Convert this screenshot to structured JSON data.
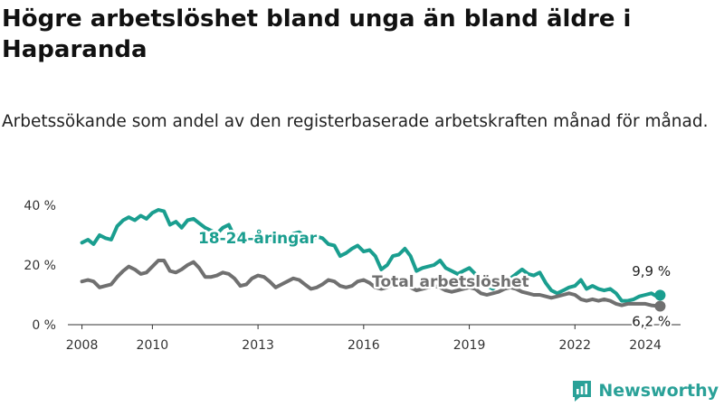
{
  "title": "Högre arbetslöshet bland unga än bland äldre i Haparanda",
  "subtitle": "Arbetssökande som andel av den registerbaserade arbetskraften månad för månad.",
  "brand": "Newsworthy",
  "colors": {
    "youth": "#1a9e8f",
    "total": "#707070",
    "axis": "#333333"
  },
  "chart_data": {
    "type": "line",
    "title": "Högre arbetslöshet bland unga än bland äldre i Haparanda",
    "subtitle": "Arbetssökande som andel av den registerbaserade arbetskraften månad för månad.",
    "xlabel": "",
    "ylabel": "",
    "x_unit": "decimal year",
    "xlim": [
      2007.6,
      2025.0
    ],
    "ylim": [
      0,
      40
    ],
    "x_ticks": [
      2008,
      2010,
      2013,
      2016,
      2019,
      2022,
      2024
    ],
    "y_ticks": [
      {
        "value": 0,
        "label": "0 %"
      },
      {
        "value": 20,
        "label": "20 %"
      },
      {
        "value": 40,
        "label": "40 %"
      }
    ],
    "grid": false,
    "legend": "inline labels",
    "series": [
      {
        "name": "18-24-åringar",
        "end_label": "9,9 %",
        "points": [
          [
            2008.0,
            27.5
          ],
          [
            2008.17,
            28.5
          ],
          [
            2008.33,
            27.0
          ],
          [
            2008.5,
            30.0
          ],
          [
            2008.67,
            29.0
          ],
          [
            2008.83,
            28.5
          ],
          [
            2009.0,
            33.0
          ],
          [
            2009.17,
            35.0
          ],
          [
            2009.33,
            36.0
          ],
          [
            2009.5,
            35.0
          ],
          [
            2009.67,
            36.5
          ],
          [
            2009.83,
            35.5
          ],
          [
            2010.0,
            37.5
          ],
          [
            2010.17,
            38.5
          ],
          [
            2010.33,
            38.0
          ],
          [
            2010.5,
            33.5
          ],
          [
            2010.67,
            34.5
          ],
          [
            2010.83,
            32.5
          ],
          [
            2011.0,
            35.0
          ],
          [
            2011.17,
            35.5
          ],
          [
            2011.33,
            34.0
          ],
          [
            2011.5,
            32.5
          ],
          [
            2011.67,
            31.5
          ],
          [
            2011.83,
            30.5
          ],
          [
            2012.0,
            32.5
          ],
          [
            2012.17,
            33.5
          ],
          [
            2012.33,
            29.5
          ],
          [
            2012.5,
            30.0
          ],
          [
            2012.67,
            28.5
          ],
          [
            2012.83,
            29.0
          ],
          [
            2013.0,
            30.5
          ],
          [
            2013.17,
            29.5
          ],
          [
            2013.33,
            28.5
          ],
          [
            2013.5,
            29.0
          ],
          [
            2013.67,
            28.0
          ],
          [
            2013.83,
            29.5
          ],
          [
            2014.0,
            30.5
          ],
          [
            2014.17,
            31.0
          ],
          [
            2014.33,
            29.5
          ],
          [
            2014.5,
            28.0
          ],
          [
            2014.67,
            29.5
          ],
          [
            2014.83,
            29.0
          ],
          [
            2015.0,
            27.0
          ],
          [
            2015.17,
            26.5
          ],
          [
            2015.33,
            23.0
          ],
          [
            2015.5,
            24.0
          ],
          [
            2015.67,
            25.5
          ],
          [
            2015.83,
            26.5
          ],
          [
            2016.0,
            24.5
          ],
          [
            2016.17,
            25.0
          ],
          [
            2016.33,
            23.0
          ],
          [
            2016.5,
            18.5
          ],
          [
            2016.67,
            20.0
          ],
          [
            2016.83,
            23.0
          ],
          [
            2017.0,
            23.5
          ],
          [
            2017.17,
            25.5
          ],
          [
            2017.33,
            23.0
          ],
          [
            2017.5,
            18.0
          ],
          [
            2017.67,
            19.0
          ],
          [
            2017.83,
            19.5
          ],
          [
            2018.0,
            20.0
          ],
          [
            2018.17,
            21.5
          ],
          [
            2018.33,
            19.0
          ],
          [
            2018.5,
            18.0
          ],
          [
            2018.67,
            17.0
          ],
          [
            2018.83,
            18.0
          ],
          [
            2019.0,
            19.0
          ],
          [
            2019.17,
            17.0
          ],
          [
            2019.33,
            14.5
          ],
          [
            2019.5,
            13.0
          ],
          [
            2019.67,
            12.0
          ],
          [
            2019.83,
            13.5
          ],
          [
            2020.0,
            14.5
          ],
          [
            2020.17,
            15.5
          ],
          [
            2020.33,
            17.0
          ],
          [
            2020.5,
            18.5
          ],
          [
            2020.67,
            17.0
          ],
          [
            2020.83,
            16.5
          ],
          [
            2021.0,
            17.5
          ],
          [
            2021.17,
            14.0
          ],
          [
            2021.33,
            11.5
          ],
          [
            2021.5,
            10.5
          ],
          [
            2021.67,
            11.5
          ],
          [
            2021.83,
            12.5
          ],
          [
            2022.0,
            13.0
          ],
          [
            2022.17,
            15.0
          ],
          [
            2022.33,
            12.0
          ],
          [
            2022.5,
            13.0
          ],
          [
            2022.67,
            12.0
          ],
          [
            2022.83,
            11.5
          ],
          [
            2023.0,
            12.0
          ],
          [
            2023.17,
            10.5
          ],
          [
            2023.33,
            8.0
          ],
          [
            2023.5,
            8.0
          ],
          [
            2023.67,
            8.5
          ],
          [
            2023.83,
            9.5
          ],
          [
            2024.0,
            10.0
          ],
          [
            2024.17,
            10.5
          ],
          [
            2024.33,
            9.5
          ],
          [
            2024.42,
            9.9
          ]
        ]
      },
      {
        "name": "Total arbetslöshet",
        "end_label": "6,2 %",
        "points": [
          [
            2008.0,
            14.5
          ],
          [
            2008.17,
            15.0
          ],
          [
            2008.33,
            14.5
          ],
          [
            2008.5,
            12.5
          ],
          [
            2008.67,
            13.0
          ],
          [
            2008.83,
            13.5
          ],
          [
            2009.0,
            16.0
          ],
          [
            2009.17,
            18.0
          ],
          [
            2009.33,
            19.5
          ],
          [
            2009.5,
            18.5
          ],
          [
            2009.67,
            17.0
          ],
          [
            2009.83,
            17.5
          ],
          [
            2010.0,
            19.5
          ],
          [
            2010.17,
            21.5
          ],
          [
            2010.33,
            21.5
          ],
          [
            2010.5,
            18.0
          ],
          [
            2010.67,
            17.5
          ],
          [
            2010.83,
            18.5
          ],
          [
            2011.0,
            20.0
          ],
          [
            2011.17,
            21.0
          ],
          [
            2011.33,
            19.0
          ],
          [
            2011.5,
            16.0
          ],
          [
            2011.67,
            16.0
          ],
          [
            2011.83,
            16.5
          ],
          [
            2012.0,
            17.5
          ],
          [
            2012.17,
            17.0
          ],
          [
            2012.33,
            15.5
          ],
          [
            2012.5,
            13.0
          ],
          [
            2012.67,
            13.5
          ],
          [
            2012.83,
            15.5
          ],
          [
            2013.0,
            16.5
          ],
          [
            2013.17,
            16.0
          ],
          [
            2013.33,
            14.5
          ],
          [
            2013.5,
            12.5
          ],
          [
            2013.67,
            13.5
          ],
          [
            2013.83,
            14.5
          ],
          [
            2014.0,
            15.5
          ],
          [
            2014.17,
            15.0
          ],
          [
            2014.33,
            13.5
          ],
          [
            2014.5,
            12.0
          ],
          [
            2014.67,
            12.5
          ],
          [
            2014.83,
            13.5
          ],
          [
            2015.0,
            15.0
          ],
          [
            2015.17,
            14.5
          ],
          [
            2015.33,
            13.0
          ],
          [
            2015.5,
            12.5
          ],
          [
            2015.67,
            13.0
          ],
          [
            2015.83,
            14.5
          ],
          [
            2016.0,
            15.0
          ],
          [
            2016.17,
            14.0
          ],
          [
            2016.33,
            12.5
          ],
          [
            2016.5,
            12.0
          ],
          [
            2016.67,
            12.5
          ],
          [
            2016.83,
            13.5
          ],
          [
            2017.0,
            14.0
          ],
          [
            2017.17,
            13.5
          ],
          [
            2017.33,
            12.5
          ],
          [
            2017.5,
            11.5
          ],
          [
            2017.67,
            12.0
          ],
          [
            2017.83,
            12.5
          ],
          [
            2018.0,
            13.0
          ],
          [
            2018.17,
            12.5
          ],
          [
            2018.33,
            11.5
          ],
          [
            2018.5,
            11.0
          ],
          [
            2018.67,
            11.5
          ],
          [
            2018.83,
            12.0
          ],
          [
            2019.0,
            12.5
          ],
          [
            2019.17,
            12.0
          ],
          [
            2019.33,
            10.5
          ],
          [
            2019.5,
            10.0
          ],
          [
            2019.67,
            10.5
          ],
          [
            2019.83,
            11.0
          ],
          [
            2020.0,
            12.0
          ],
          [
            2020.17,
            12.5
          ],
          [
            2020.33,
            12.0
          ],
          [
            2020.5,
            11.0
          ],
          [
            2020.67,
            10.5
          ],
          [
            2020.83,
            10.0
          ],
          [
            2021.0,
            10.0
          ],
          [
            2021.17,
            9.5
          ],
          [
            2021.33,
            9.0
          ],
          [
            2021.5,
            9.5
          ],
          [
            2021.67,
            10.0
          ],
          [
            2021.83,
            10.5
          ],
          [
            2022.0,
            10.0
          ],
          [
            2022.17,
            8.5
          ],
          [
            2022.33,
            8.0
          ],
          [
            2022.5,
            8.5
          ],
          [
            2022.67,
            8.0
          ],
          [
            2022.83,
            8.5
          ],
          [
            2023.0,
            8.0
          ],
          [
            2023.17,
            7.0
          ],
          [
            2023.33,
            6.5
          ],
          [
            2023.5,
            7.0
          ],
          [
            2023.67,
            7.0
          ],
          [
            2023.83,
            7.0
          ],
          [
            2024.0,
            7.0
          ],
          [
            2024.17,
            6.5
          ],
          [
            2024.33,
            6.3
          ],
          [
            2024.42,
            6.2
          ]
        ]
      }
    ]
  }
}
